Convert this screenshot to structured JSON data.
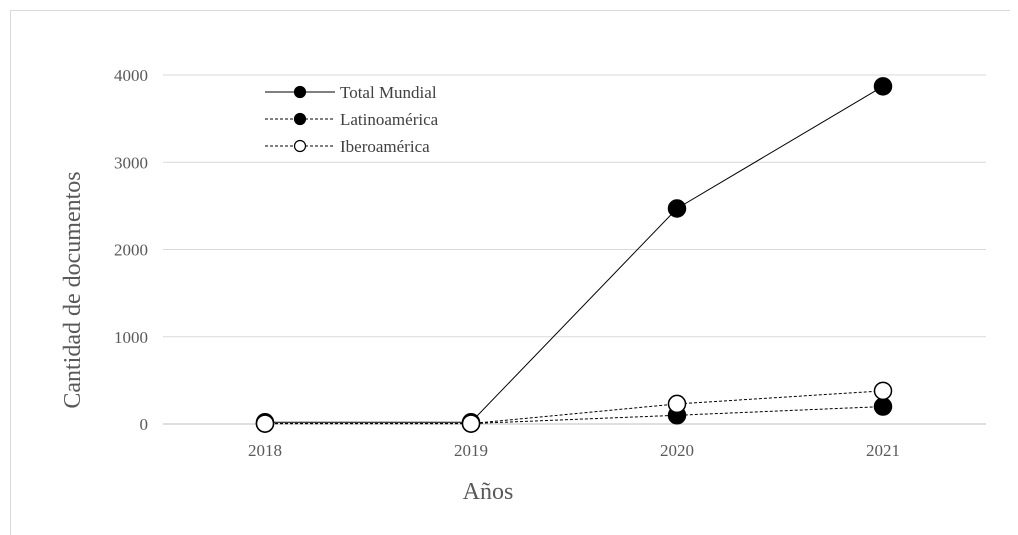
{
  "chart_data": {
    "type": "line",
    "title": "",
    "xlabel": "Años",
    "ylabel": "Cantidad de documentos",
    "categories": [
      "2018",
      "2019",
      "2020",
      "2021"
    ],
    "ylim": [
      0,
      4000
    ],
    "yticks": [
      "0",
      "1000",
      "2000",
      "3000",
      "4000"
    ],
    "grid": true,
    "legend_position": "top-left",
    "series": [
      {
        "name": "Total Mundial",
        "values": [
          20,
          20,
          2470,
          3870
        ],
        "line_style": "solid",
        "marker": "filled-circle",
        "color": "#000000"
      },
      {
        "name": "Latinoamérica",
        "values": [
          5,
          5,
          100,
          200
        ],
        "line_style": "dashed",
        "marker": "filled-circle",
        "color": "#000000"
      },
      {
        "name": "Iberoamérica",
        "values": [
          5,
          5,
          230,
          380
        ],
        "line_style": "dashed",
        "marker": "open-circle",
        "color": "#000000"
      }
    ]
  }
}
